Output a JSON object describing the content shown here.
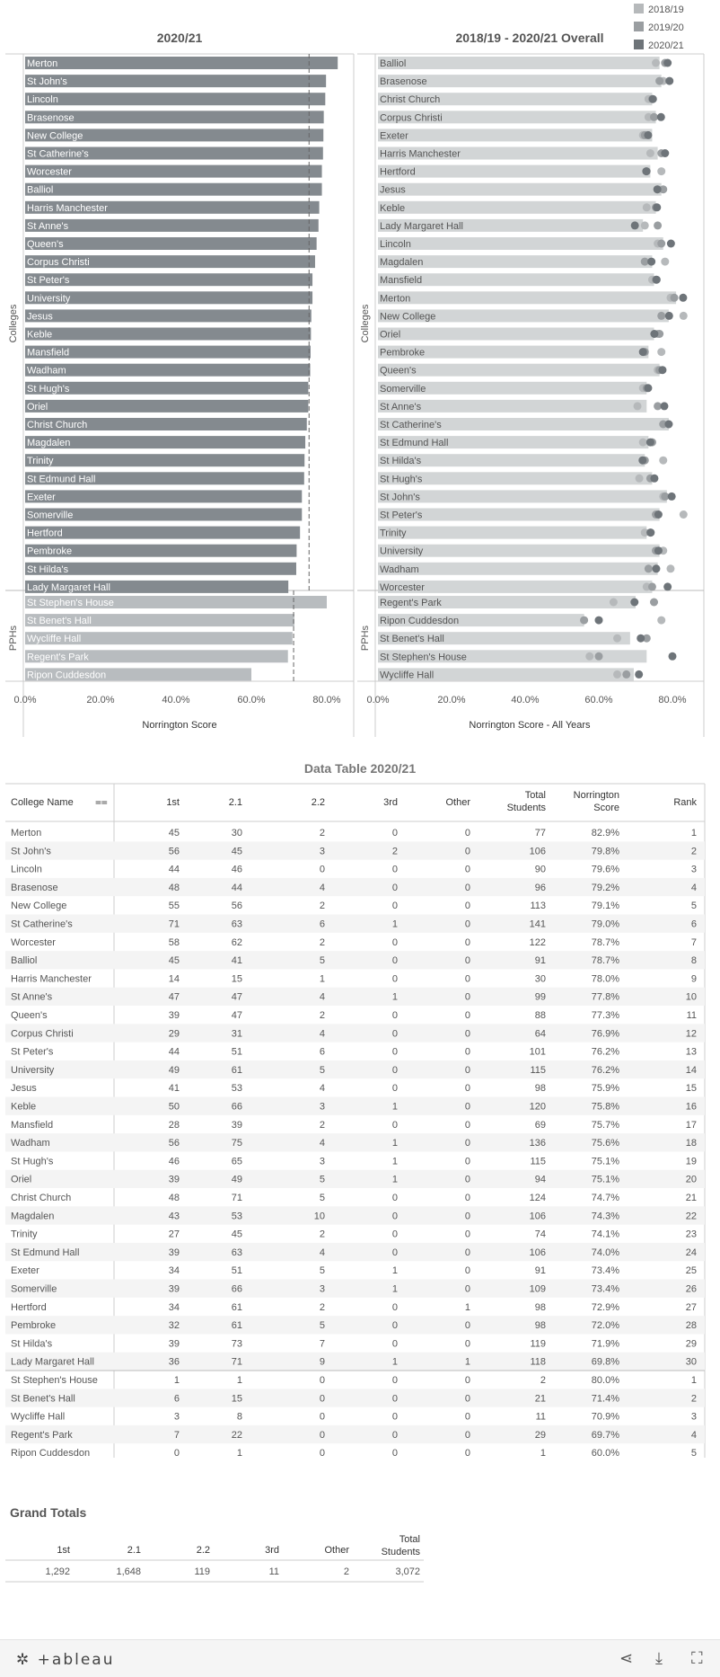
{
  "left_chart": {
    "title": "2020/21",
    "xlabel": "Norrington Score",
    "ylabel_top": "Colleges",
    "ylabel_bottom": "PPHs"
  },
  "right_chart": {
    "title": "2018/19 - 2020/21 Overall",
    "xlabel": "Norrington Score - All Years",
    "ylabel_top": "Colleges",
    "ylabel_bottom": "PPHs"
  },
  "legend": [
    {
      "label": "2018/19",
      "color": "#b6b9bb"
    },
    {
      "label": "2019/20",
      "color": "#9a9ea1"
    },
    {
      "label": "2020/21",
      "color": "#6e7479"
    }
  ],
  "table_title": "Data Table 2020/21",
  "table_headers": [
    "College Name",
    "1st",
    "2.1",
    "2.2",
    "3rd",
    "Other",
    "Total Students",
    "Norrington Score",
    "Rank"
  ],
  "grand_totals": {
    "title": "Grand Totals",
    "headers": [
      "1st",
      "2.1",
      "2.2",
      "3rd",
      "Other",
      "Total Students"
    ],
    "values": [
      "1,292",
      "1,648",
      "119",
      "11",
      "2",
      "3,072"
    ]
  },
  "footer": {
    "logo": "+ableau"
  },
  "chart_data": [
    {
      "type": "bar",
      "title": "2020/21",
      "xlabel": "Norrington Score",
      "xlim": [
        0,
        100
      ],
      "xticks": [
        "0.0%",
        "20.0%",
        "40.0%",
        "60.0%",
        "80.0%"
      ],
      "reference_line_colleges": 75.3,
      "reference_line_pphs": 71.2,
      "groups": [
        {
          "name": "Colleges",
          "categories": [
            "Merton",
            "St John's",
            "Lincoln",
            "Brasenose",
            "New College",
            "St Catherine's",
            "Worcester",
            "Balliol",
            "Harris Manchester",
            "St Anne's",
            "Queen's",
            "Corpus Christi",
            "St Peter's",
            "University",
            "Jesus",
            "Keble",
            "Mansfield",
            "Wadham",
            "St Hugh's",
            "Oriel",
            "Christ Church",
            "Magdalen",
            "Trinity",
            "St Edmund Hall",
            "Exeter",
            "Somerville",
            "Hertford",
            "Pembroke",
            "St Hilda's",
            "Lady Margaret Hall"
          ],
          "values": [
            82.9,
            79.8,
            79.6,
            79.2,
            79.1,
            79.0,
            78.7,
            78.7,
            78.0,
            77.8,
            77.3,
            76.9,
            76.2,
            76.2,
            75.9,
            75.8,
            75.7,
            75.6,
            75.1,
            75.1,
            74.7,
            74.3,
            74.1,
            74.0,
            73.4,
            73.4,
            72.9,
            72.0,
            71.9,
            69.8
          ]
        },
        {
          "name": "PPHs",
          "categories": [
            "St Stephen's House",
            "St Benet's Hall",
            "Wycliffe Hall",
            "Regent's Park",
            "Ripon Cuddesdon"
          ],
          "values": [
            80.0,
            71.4,
            70.9,
            69.7,
            60.0
          ]
        }
      ]
    },
    {
      "type": "bar",
      "title": "2018/19 - 2020/21 Overall",
      "xlabel": "Norrington Score - All Years",
      "xlim": [
        0,
        100
      ],
      "xticks": [
        "0.0%",
        "20.0%",
        "40.0%",
        "60.0%",
        "80.0%"
      ],
      "series_names": [
        "2018/19",
        "2019/20",
        "2020/21"
      ],
      "groups": [
        {
          "name": "Colleges",
          "categories": [
            "Balliol",
            "Brasenose",
            "Christ Church",
            "Corpus Christi",
            "Exeter",
            "Harris Manchester",
            "Hertford",
            "Jesus",
            "Keble",
            "Lady Margaret Hall",
            "Lincoln",
            "Magdalen",
            "Mansfield",
            "Merton",
            "New College",
            "Oriel",
            "Pembroke",
            "Queen's",
            "Somerville",
            "St Anne's",
            "St Catherine's",
            "St Edmund Hall",
            "St Hilda's",
            "St Hugh's",
            "St John's",
            "St Peter's",
            "Trinity",
            "University",
            "Wadham",
            "Worcester"
          ],
          "overall": [
            76.5,
            77.0,
            74.5,
            75.5,
            74.5,
            76.0,
            74.0,
            77.0,
            75.5,
            72.0,
            77.5,
            74.5,
            75.0,
            81.0,
            79.0,
            75.0,
            73.5,
            76.5,
            73.0,
            73.0,
            79.0,
            73.5,
            72.5,
            74.5,
            78.5,
            76.5,
            73.0,
            76.5,
            76.0,
            74.5
          ],
          "y2018": [
            75.5,
            77.5,
            73.5,
            73.5,
            72.0,
            74.0,
            77.0,
            76.0,
            73.0,
            72.5,
            76.0,
            78.0,
            74.5,
            79.5,
            83.0,
            76.0,
            77.0,
            76.0,
            72.0,
            70.5,
            79.0,
            72.0,
            77.5,
            71.0,
            77.5,
            83.0,
            72.5,
            77.5,
            79.5,
            73.0
          ],
          "y2019": [
            78.0,
            76.5,
            74.5,
            75.0,
            72.5,
            77.0,
            73.0,
            77.5,
            75.5,
            76.0,
            77.0,
            72.5,
            75.5,
            80.5,
            77.0,
            76.5,
            72.5,
            76.5,
            73.0,
            76.0,
            77.5,
            74.5,
            72.5,
            74.0,
            78.0,
            75.5,
            74.0,
            75.5,
            73.5,
            74.5
          ],
          "y2020": [
            78.7,
            79.2,
            74.7,
            76.9,
            73.4,
            78.0,
            72.9,
            75.9,
            75.8,
            69.8,
            79.6,
            74.3,
            75.7,
            82.9,
            79.1,
            75.1,
            72.0,
            77.3,
            73.4,
            77.8,
            79.0,
            74.0,
            71.9,
            75.1,
            79.8,
            76.2,
            74.1,
            76.2,
            75.6,
            78.7
          ]
        },
        {
          "name": "PPHs",
          "categories": [
            "Regent's Park",
            "Ripon Cuddesdon",
            "St Benet's Hall",
            "St Stephen's House",
            "Wycliffe Hall"
          ],
          "overall": [
            70.0,
            56.0,
            68.5,
            73.0,
            69.5
          ],
          "y2018": [
            64.0,
            77.0,
            65.0,
            57.5,
            65.0
          ],
          "y2019": [
            75.0,
            56.0,
            73.0,
            60.0,
            67.5
          ],
          "y2020": [
            69.7,
            60.0,
            71.4,
            80.0,
            70.9
          ]
        }
      ]
    },
    {
      "type": "table",
      "title": "Data Table 2020/21",
      "columns": [
        "College Name",
        "1st",
        "2.1",
        "2.2",
        "3rd",
        "Other",
        "Total Students",
        "Norrington Score",
        "Rank"
      ],
      "rows": [
        [
          "Merton",
          "45",
          "30",
          "2",
          "0",
          "0",
          "77",
          "82.9%",
          "1"
        ],
        [
          "St John's",
          "56",
          "45",
          "3",
          "2",
          "0",
          "106",
          "79.8%",
          "2"
        ],
        [
          "Lincoln",
          "44",
          "46",
          "0",
          "0",
          "0",
          "90",
          "79.6%",
          "3"
        ],
        [
          "Brasenose",
          "48",
          "44",
          "4",
          "0",
          "0",
          "96",
          "79.2%",
          "4"
        ],
        [
          "New College",
          "55",
          "56",
          "2",
          "0",
          "0",
          "113",
          "79.1%",
          "5"
        ],
        [
          "St Catherine's",
          "71",
          "63",
          "6",
          "1",
          "0",
          "141",
          "79.0%",
          "6"
        ],
        [
          "Worcester",
          "58",
          "62",
          "2",
          "0",
          "0",
          "122",
          "78.7%",
          "7"
        ],
        [
          "Balliol",
          "45",
          "41",
          "5",
          "0",
          "0",
          "91",
          "78.7%",
          "8"
        ],
        [
          "Harris Manchester",
          "14",
          "15",
          "1",
          "0",
          "0",
          "30",
          "78.0%",
          "9"
        ],
        [
          "St Anne's",
          "47",
          "47",
          "4",
          "1",
          "0",
          "99",
          "77.8%",
          "10"
        ],
        [
          "Queen's",
          "39",
          "47",
          "2",
          "0",
          "0",
          "88",
          "77.3%",
          "11"
        ],
        [
          "Corpus Christi",
          "29",
          "31",
          "4",
          "0",
          "0",
          "64",
          "76.9%",
          "12"
        ],
        [
          "St Peter's",
          "44",
          "51",
          "6",
          "0",
          "0",
          "101",
          "76.2%",
          "13"
        ],
        [
          "University",
          "49",
          "61",
          "5",
          "0",
          "0",
          "115",
          "76.2%",
          "14"
        ],
        [
          "Jesus",
          "41",
          "53",
          "4",
          "0",
          "0",
          "98",
          "75.9%",
          "15"
        ],
        [
          "Keble",
          "50",
          "66",
          "3",
          "1",
          "0",
          "120",
          "75.8%",
          "16"
        ],
        [
          "Mansfield",
          "28",
          "39",
          "2",
          "0",
          "0",
          "69",
          "75.7%",
          "17"
        ],
        [
          "Wadham",
          "56",
          "75",
          "4",
          "1",
          "0",
          "136",
          "75.6%",
          "18"
        ],
        [
          "St Hugh's",
          "46",
          "65",
          "3",
          "1",
          "0",
          "115",
          "75.1%",
          "19"
        ],
        [
          "Oriel",
          "39",
          "49",
          "5",
          "1",
          "0",
          "94",
          "75.1%",
          "20"
        ],
        [
          "Christ Church",
          "48",
          "71",
          "5",
          "0",
          "0",
          "124",
          "74.7%",
          "21"
        ],
        [
          "Magdalen",
          "43",
          "53",
          "10",
          "0",
          "0",
          "106",
          "74.3%",
          "22"
        ],
        [
          "Trinity",
          "27",
          "45",
          "2",
          "0",
          "0",
          "74",
          "74.1%",
          "23"
        ],
        [
          "St Edmund Hall",
          "39",
          "63",
          "4",
          "0",
          "0",
          "106",
          "74.0%",
          "24"
        ],
        [
          "Exeter",
          "34",
          "51",
          "5",
          "1",
          "0",
          "91",
          "73.4%",
          "25"
        ],
        [
          "Somerville",
          "39",
          "66",
          "3",
          "1",
          "0",
          "109",
          "73.4%",
          "26"
        ],
        [
          "Hertford",
          "34",
          "61",
          "2",
          "0",
          "1",
          "98",
          "72.9%",
          "27"
        ],
        [
          "Pembroke",
          "32",
          "61",
          "5",
          "0",
          "0",
          "98",
          "72.0%",
          "28"
        ],
        [
          "St Hilda's",
          "39",
          "73",
          "7",
          "0",
          "0",
          "119",
          "71.9%",
          "29"
        ],
        [
          "Lady Margaret Hall",
          "36",
          "71",
          "9",
          "1",
          "1",
          "118",
          "69.8%",
          "30"
        ],
        [
          "St Stephen's House",
          "1",
          "1",
          "0",
          "0",
          "0",
          "2",
          "80.0%",
          "1"
        ],
        [
          "St Benet's Hall",
          "6",
          "15",
          "0",
          "0",
          "0",
          "21",
          "71.4%",
          "2"
        ],
        [
          "Wycliffe Hall",
          "3",
          "8",
          "0",
          "0",
          "0",
          "11",
          "70.9%",
          "3"
        ],
        [
          "Regent's Park",
          "7",
          "22",
          "0",
          "0",
          "0",
          "29",
          "69.7%",
          "4"
        ],
        [
          "Ripon Cuddesdon",
          "0",
          "1",
          "0",
          "0",
          "0",
          "1",
          "60.0%",
          "5"
        ]
      ]
    }
  ]
}
